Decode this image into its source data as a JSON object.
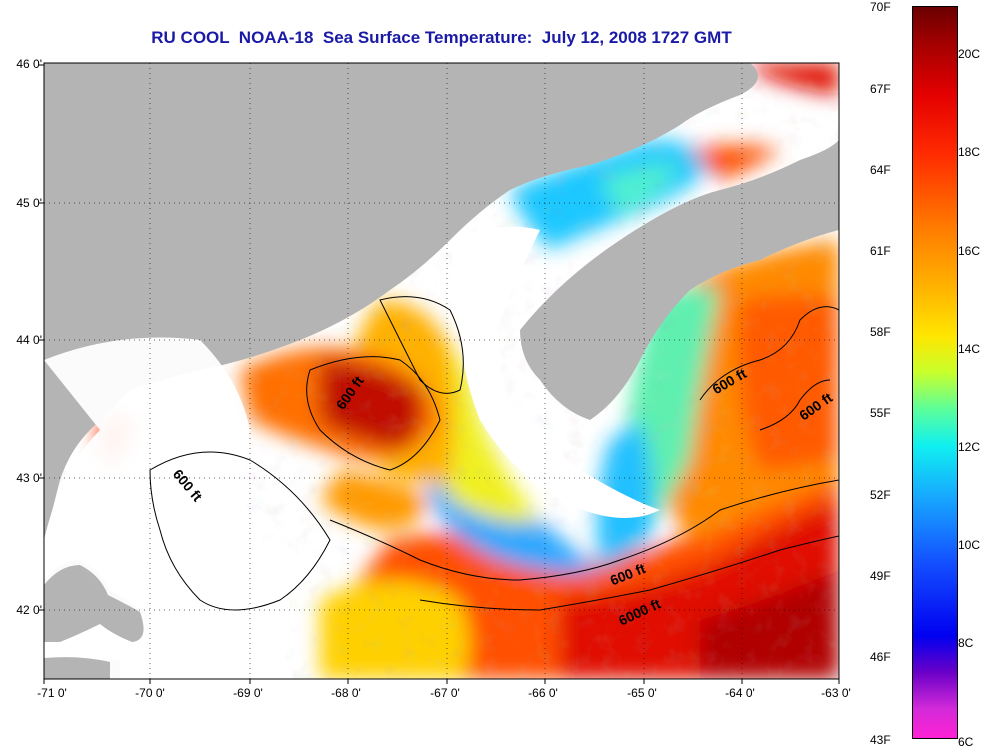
{
  "title": "RU COOL  NOAA-18  Sea Surface Temperature:  July 12, 2008 1727 GMT",
  "colors": {
    "land": "#b4b4b4",
    "nodata": "#ffffff",
    "warm": "#e00000",
    "cool": "#12c8ff"
  },
  "axes": {
    "lon_labels": [
      "-71 0'",
      "-70 0'",
      "-69 0'",
      "-68 0'",
      "-67 0'",
      "-66 0'",
      "-65 0'",
      "-64 0'",
      "-63 0'"
    ],
    "lat_labels": [
      "46 0'",
      "45 0'",
      "44 0'",
      "43 0'",
      "42 0'"
    ],
    "lon_range": [
      -71,
      -63
    ],
    "lat_range": [
      41.5,
      46
    ]
  },
  "contour_labels": [
    {
      "text": "600 ft",
      "lon": -68.1,
      "lat": 43.65
    },
    {
      "text": "600 ft",
      "lon": -69.8,
      "lat": 42.95
    },
    {
      "text": "600 ft",
      "lon": -64.0,
      "lat": 43.75
    },
    {
      "text": "600 ft",
      "lon": -63.3,
      "lat": 43.55
    },
    {
      "text": "600 ft",
      "lon": -65.0,
      "lat": 42.3
    },
    {
      "text": "6000 ft",
      "lon": -65.0,
      "lat": 42.05
    }
  ],
  "colorbar": {
    "fahrenheit": [
      "70F",
      "67F",
      "64F",
      "61F",
      "58F",
      "55F",
      "52F",
      "49F",
      "46F",
      "43F"
    ],
    "celsius": [
      "20C",
      "18C",
      "16C",
      "14C",
      "12C",
      "10C",
      "8C",
      "6C"
    ]
  }
}
